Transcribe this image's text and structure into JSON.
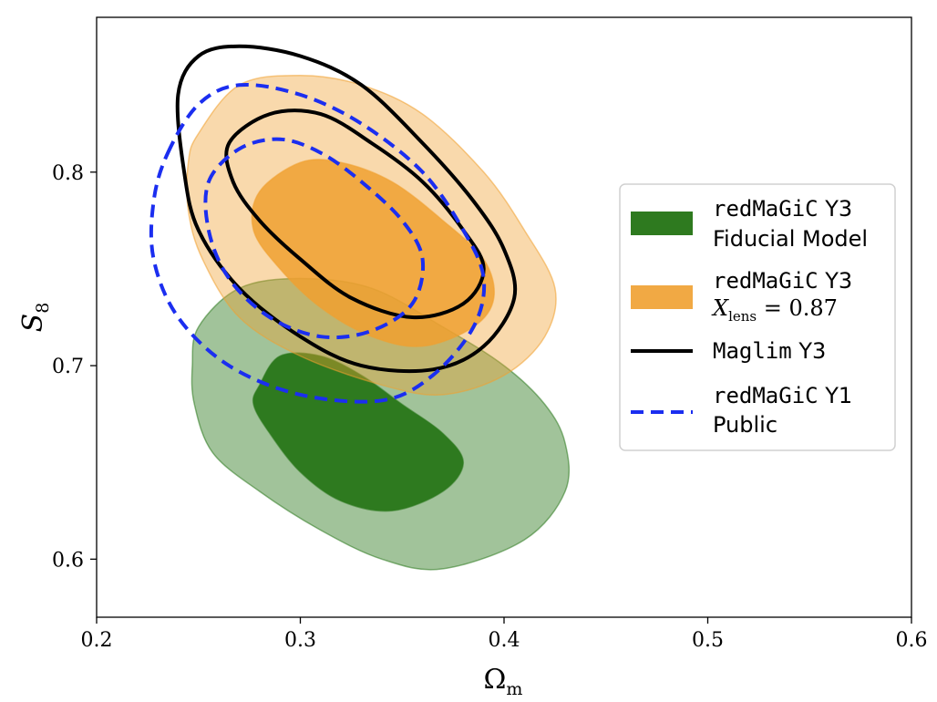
{
  "chart_data": {
    "type": "contour",
    "xlabel": "Ωm",
    "ylabel": "S8",
    "xlim": [
      0.2,
      0.6
    ],
    "ylim": [
      0.57,
      0.88
    ],
    "xticks": [
      "0.2",
      "0.3",
      "0.4",
      "0.5",
      "0.6"
    ],
    "yticks": [
      "0.6",
      "0.7",
      "0.8"
    ],
    "legend_position": "center-right",
    "series": [
      {
        "key": "green",
        "legend_lines": [
          "redMaGiC Y3",
          "Fiducial Model"
        ],
        "color": "#2e7a1f",
        "style": "filled",
        "contours": [
          {
            "level": "95%",
            "opacity": 0.45,
            "points": [
              [
                0.25,
                0.72
              ],
              [
                0.27,
                0.74
              ],
              [
                0.3,
                0.745
              ],
              [
                0.335,
                0.74
              ],
              [
                0.37,
                0.72
              ],
              [
                0.4,
                0.7
              ],
              [
                0.42,
                0.68
              ],
              [
                0.43,
                0.66
              ],
              [
                0.43,
                0.635
              ],
              [
                0.41,
                0.61
              ],
              [
                0.37,
                0.595
              ],
              [
                0.34,
                0.6
              ],
              [
                0.31,
                0.615
              ],
              [
                0.28,
                0.635
              ],
              [
                0.257,
                0.655
              ],
              [
                0.248,
                0.68
              ],
              [
                0.247,
                0.7
              ]
            ]
          },
          {
            "level": "68%",
            "opacity": 1.0,
            "points": [
              [
                0.28,
                0.69
              ],
              [
                0.29,
                0.705
              ],
              [
                0.31,
                0.705
              ],
              [
                0.33,
                0.695
              ],
              [
                0.35,
                0.68
              ],
              [
                0.37,
                0.665
              ],
              [
                0.38,
                0.65
              ],
              [
                0.37,
                0.635
              ],
              [
                0.345,
                0.625
              ],
              [
                0.32,
                0.63
              ],
              [
                0.3,
                0.645
              ],
              [
                0.285,
                0.665
              ],
              [
                0.277,
                0.68
              ]
            ]
          }
        ]
      },
      {
        "key": "orange",
        "legend_lines": [
          "redMaGiC Y3",
          "Xlens = 0.87"
        ],
        "color": "#f0a030",
        "style": "filled",
        "contours": [
          {
            "level": "95%",
            "opacity": 0.4,
            "points": [
              [
                0.25,
                0.82
              ],
              [
                0.27,
                0.845
              ],
              [
                0.3,
                0.85
              ],
              [
                0.33,
                0.845
              ],
              [
                0.36,
                0.83
              ],
              [
                0.39,
                0.8
              ],
              [
                0.41,
                0.77
              ],
              [
                0.425,
                0.74
              ],
              [
                0.42,
                0.715
              ],
              [
                0.4,
                0.695
              ],
              [
                0.37,
                0.685
              ],
              [
                0.34,
                0.69
              ],
              [
                0.3,
                0.705
              ],
              [
                0.27,
                0.725
              ],
              [
                0.252,
                0.755
              ],
              [
                0.245,
                0.78
              ],
              [
                0.245,
                0.805
              ]
            ]
          },
          {
            "level": "68%",
            "opacity": 0.85,
            "points": [
              [
                0.28,
                0.79
              ],
              [
                0.3,
                0.805
              ],
              [
                0.32,
                0.805
              ],
              [
                0.345,
                0.795
              ],
              [
                0.37,
                0.775
              ],
              [
                0.39,
                0.755
              ],
              [
                0.395,
                0.735
              ],
              [
                0.385,
                0.72
              ],
              [
                0.36,
                0.71
              ],
              [
                0.335,
                0.715
              ],
              [
                0.31,
                0.73
              ],
              [
                0.29,
                0.75
              ],
              [
                0.277,
                0.77
              ]
            ]
          }
        ]
      },
      {
        "key": "black",
        "legend_lines": [
          "Maglim Y3"
        ],
        "color": "#000000",
        "style": "solid",
        "contours": [
          {
            "level": "95%",
            "points": [
              [
                0.24,
                0.84
              ],
              [
                0.25,
                0.86
              ],
              [
                0.27,
                0.865
              ],
              [
                0.3,
                0.86
              ],
              [
                0.33,
                0.845
              ],
              [
                0.36,
                0.815
              ],
              [
                0.385,
                0.785
              ],
              [
                0.4,
                0.76
              ],
              [
                0.405,
                0.735
              ],
              [
                0.39,
                0.71
              ],
              [
                0.365,
                0.698
              ],
              [
                0.33,
                0.7
              ],
              [
                0.3,
                0.715
              ],
              [
                0.27,
                0.74
              ],
              [
                0.25,
                0.77
              ],
              [
                0.243,
                0.8
              ]
            ]
          },
          {
            "level": "68%",
            "points": [
              [
                0.265,
                0.815
              ],
              [
                0.285,
                0.83
              ],
              [
                0.31,
                0.83
              ],
              [
                0.335,
                0.815
              ],
              [
                0.36,
                0.795
              ],
              [
                0.38,
                0.77
              ],
              [
                0.39,
                0.75
              ],
              [
                0.38,
                0.732
              ],
              [
                0.355,
                0.725
              ],
              [
                0.325,
                0.735
              ],
              [
                0.3,
                0.755
              ],
              [
                0.28,
                0.775
              ],
              [
                0.267,
                0.795
              ]
            ]
          }
        ]
      },
      {
        "key": "blue",
        "legend_lines": [
          "redMaGiC Y1",
          "Public"
        ],
        "color": "#1b2ef0",
        "style": "dashed",
        "contours": [
          {
            "level": "95%",
            "points": [
              [
                0.235,
                0.81
              ],
              [
                0.25,
                0.835
              ],
              [
                0.27,
                0.845
              ],
              [
                0.3,
                0.84
              ],
              [
                0.33,
                0.825
              ],
              [
                0.36,
                0.8
              ],
              [
                0.38,
                0.77
              ],
              [
                0.39,
                0.745
              ],
              [
                0.385,
                0.72
              ],
              [
                0.365,
                0.695
              ],
              [
                0.34,
                0.682
              ],
              [
                0.3,
                0.685
              ],
              [
                0.265,
                0.7
              ],
              [
                0.24,
                0.725
              ],
              [
                0.228,
                0.755
              ],
              [
                0.228,
                0.785
              ]
            ]
          },
          {
            "level": "68%",
            "points": [
              [
                0.255,
                0.795
              ],
              [
                0.27,
                0.812
              ],
              [
                0.29,
                0.817
              ],
              [
                0.31,
                0.81
              ],
              [
                0.33,
                0.795
              ],
              [
                0.35,
                0.775
              ],
              [
                0.36,
                0.755
              ],
              [
                0.355,
                0.732
              ],
              [
                0.335,
                0.718
              ],
              [
                0.31,
                0.715
              ],
              [
                0.285,
                0.725
              ],
              [
                0.265,
                0.745
              ],
              [
                0.255,
                0.77
              ]
            ]
          }
        ]
      }
    ]
  }
}
